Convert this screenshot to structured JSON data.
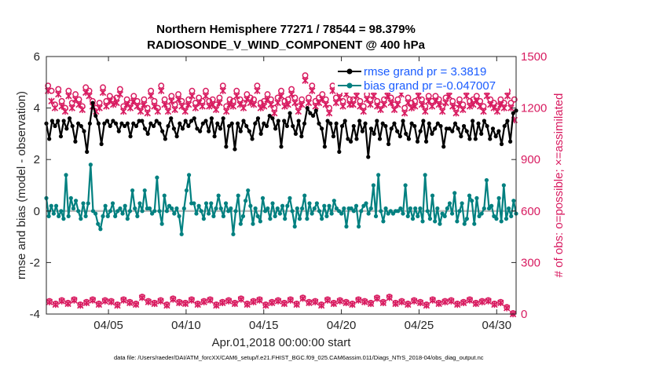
{
  "chart_data": {
    "type": "line",
    "title": "Northern Hemisphere 77271 / 78544 = 98.379%",
    "subtitle": "RADIOSONDE_V_WIND_COMPONENT @ 400 hPa",
    "xlabel": "Apr.01,2018 00:00:00 start",
    "ylabel_left": "rmse and bias (model - observation)",
    "ylabel_right": "# of obs: o=possible; ×=assimilated",
    "ylim_left": [
      -4,
      6
    ],
    "ylim_right": [
      0,
      1500
    ],
    "xlim_days": [
      1,
      31.25
    ],
    "left_ticks": [
      "-4",
      "-2",
      "0",
      "2",
      "4",
      "6"
    ],
    "left_tick_values": [
      -4,
      -2,
      0,
      2,
      4,
      6
    ],
    "right_ticks": [
      "0",
      "300",
      "600",
      "900",
      "1200",
      "1500"
    ],
    "right_tick_values": [
      0,
      300,
      600,
      900,
      1200,
      1500
    ],
    "x_ticks": [
      "04/05",
      "04/10",
      "04/15",
      "04/20",
      "04/25",
      "04/30"
    ],
    "x_tick_days": [
      5,
      10,
      15,
      20,
      25,
      30
    ],
    "footnote": "data file: /Users/raeder/DAI/ATM_forcXX/CAM6_setup/f.e21.FHIST_BGC.f09_025.CAM6assim.011/Diags_NTrS_2018-04/obs_diag_output.nc",
    "series": [
      {
        "name": "rmse grand pr = 3.3819",
        "color": "#000000",
        "values": [
          3.4,
          2.8,
          3.5,
          3.3,
          3.5,
          2.9,
          3.5,
          3.2,
          3.6,
          3.3,
          2.7,
          3.4,
          3.3,
          3.1,
          2.3,
          3.4,
          4.2,
          3.7,
          3.4,
          2.6,
          3.4,
          3.5,
          3.3,
          3.5,
          3.4,
          3.1,
          3.4,
          3.3,
          3.4,
          2.9,
          3.4,
          3.3,
          3.5,
          3.5,
          3.2,
          3.0,
          3.4,
          3.3,
          3.5,
          3.4,
          3.1,
          2.8,
          3.3,
          3.6,
          3.2,
          2.9,
          3.4,
          3.2,
          3.5,
          3.3,
          3.5,
          3.6,
          3.2,
          3.1,
          3.4,
          3.5,
          3.1,
          3.6,
          2.9,
          3.4,
          3.2,
          3.6,
          2.5,
          3.3,
          3.4,
          2.4,
          3.4,
          3.1,
          3.5,
          3.3,
          3.1,
          2.8,
          3.4,
          3.6,
          3.0,
          3.4,
          3.3,
          3.7,
          3.6,
          3.2,
          3.5,
          2.5,
          3.5,
          3.3,
          3.8,
          3.3,
          3.0,
          3.5,
          2.9,
          3.4,
          4.0,
          3.8,
          3.7,
          3.9,
          3.4,
          3.2,
          2.5,
          3.5,
          3.4,
          2.9,
          3.4,
          2.3,
          3.3,
          3.5,
          2.8,
          2.7,
          3.3,
          2.8,
          3.5,
          3.1,
          3.4,
          2.1,
          3.2,
          3.0,
          3.5,
          2.8,
          3.4,
          3.3,
          2.6,
          3.2,
          3.4,
          3.1,
          2.9,
          3.5,
          3.0,
          2.8,
          3.4,
          3.3,
          2.7,
          3.1,
          3.5,
          2.7,
          3.4,
          3.0,
          3.2,
          3.4,
          3.3,
          2.5,
          3.2,
          3.2,
          3.1,
          3.4,
          3.2,
          2.9,
          3.3,
          3.1,
          2.8,
          3.5,
          2.8,
          3.4,
          3.0,
          3.5,
          3.3,
          2.8,
          3.2,
          2.9,
          3.1,
          2.6,
          3.3,
          3.5,
          2.7,
          3.8,
          3.9
        ]
      },
      {
        "name": "bias grand pr =-0.047007",
        "color": "#008080",
        "values": [
          0.5,
          -0.2,
          0.2,
          -0.1,
          0.2,
          -0.2,
          0.0,
          -0.3,
          1.4,
          -0.2,
          0.5,
          0.1,
          0.4,
          0.0,
          -0.3,
          0.3,
          -0.2,
          0.3,
          1.8,
          0.0,
          -0.1,
          -0.5,
          -0.7,
          -0.2,
          0.2,
          -0.2,
          0.0,
          0.3,
          -0.2,
          0.0,
          0.1,
          -0.1,
          0.2,
          -0.3,
          0.0,
          0.8,
          0.1,
          -0.2,
          0.3,
          0.0,
          0.8,
          0.1,
          0.1,
          -0.1,
          0.0,
          1.3,
          0.0,
          -0.5,
          0.6,
          0.0,
          0.2,
          0.1,
          -0.1,
          0.1,
          -0.2,
          -0.9,
          0.1,
          0.8,
          1.4,
          0.3,
          0.3,
          -0.1,
          0.2,
          0.0,
          -0.3,
          0.3,
          -0.1,
          0.3,
          -0.2,
          0.1,
          0.6,
          0.1,
          -0.2,
          0.3,
          0.0,
          0.1,
          -0.9,
          0.0,
          0.6,
          -0.5,
          -0.2,
          0.4,
          0.8,
          0.2,
          -0.5,
          0.1,
          -0.2,
          -0.4,
          0.5,
          0.0,
          0.1,
          -0.3,
          0.3,
          -0.2,
          0.1,
          -0.1,
          0.2,
          -0.3,
          0.2,
          0.5,
          0.0,
          -0.6,
          0.1,
          -0.3,
          0.1,
          0.6,
          -0.3,
          0.3,
          -0.1,
          0.1,
          0.3,
          0.0,
          -0.3,
          0.2,
          -0.2,
          0.2,
          -0.1,
          0.4,
          0.1,
          0.0,
          -0.1,
          0.1,
          -0.6,
          0.1,
          0.1,
          0.0,
          0.2,
          -0.6,
          0.0,
          0.2,
          0.3,
          -0.1,
          0.1,
          1.0,
          -0.2,
          1.4,
          0.0,
          -0.4,
          0.1,
          -0.1,
          0.0,
          -0.1,
          0.0,
          0.0,
          0.1,
          -0.1,
          1.0,
          -0.2,
          0.1,
          -0.3,
          0.1,
          -0.2,
          0.1,
          -0.4,
          1.4,
          0.0,
          -0.3,
          0.6,
          -0.4,
          0.1,
          -0.5,
          -0.1,
          -0.2,
          0.1,
          0.3,
          -0.1,
          0.7,
          -0.4,
          0.0,
          0.3,
          -0.5,
          -0.3,
          0.6,
          0.4,
          -0.5,
          0.5,
          -0.2,
          -0.1,
          0.1,
          1.2,
          0.1,
          0.2,
          -0.2,
          -0.3,
          0.5,
          -0.4,
          1.0,
          -0.3,
          0.1,
          -0.2,
          0.4,
          -0.1
        ]
      }
    ],
    "obs_possible": [
      1330,
      1300,
      1220,
      1310,
      1240,
      1200,
      1300,
      1230,
      1280,
      1250,
      1210,
      1320,
      1300,
      1240,
      1200,
      1230,
      1320,
      1240,
      1270,
      1250,
      1260,
      1310,
      1210,
      1250,
      1230,
      1270,
      1240,
      1210,
      1250,
      1200,
      1300,
      1240,
      1200,
      1330,
      1250,
      1210,
      1270,
      1220,
      1280,
      1240,
      1210,
      1250,
      1300,
      1230,
      1260,
      1240,
      1300,
      1240,
      1250,
      1220,
      1260,
      1330,
      1210,
      1250,
      1240,
      1300,
      1250,
      1230,
      1280,
      1260,
      1250,
      1330,
      1230,
      1240,
      1280,
      1250,
      1200,
      1260,
      1300,
      1240,
      1250,
      1310,
      1260,
      1210,
      1250,
      1390,
      1260,
      1330,
      1240,
      1260,
      1280,
      1250,
      1200,
      1330,
      1260,
      1290,
      1240,
      1310,
      1250,
      1250,
      1300,
      1240,
      1210,
      1280,
      1250,
      1300,
      1240,
      1220,
      1250,
      1300,
      1260,
      1220,
      1250,
      1310,
      1200,
      1260,
      1230,
      1240,
      1300,
      1250,
      1210,
      1270,
      1240,
      1270,
      1250,
      1210,
      1260,
      1300,
      1240,
      1200,
      1250,
      1220,
      1300,
      1240,
      1250,
      1270,
      1240,
      1210,
      1300,
      1250,
      1230,
      1210,
      1250,
      1230,
      1300,
      1230,
      1250
    ],
    "obs_assimilated": [
      1300,
      1240,
      1200,
      1280,
      1210,
      1180,
      1270,
      1200,
      1250,
      1220,
      1190,
      1290,
      1270,
      1210,
      1180,
      1200,
      1290,
      1210,
      1240,
      1220,
      1230,
      1280,
      1180,
      1220,
      1200,
      1240,
      1210,
      1180,
      1220,
      1170,
      1270,
      1210,
      1180,
      1300,
      1220,
      1180,
      1240,
      1190,
      1250,
      1210,
      1180,
      1220,
      1270,
      1200,
      1230,
      1210,
      1270,
      1210,
      1220,
      1190,
      1230,
      1300,
      1180,
      1220,
      1210,
      1270,
      1220,
      1200,
      1250,
      1230,
      1220,
      1300,
      1200,
      1210,
      1250,
      1220,
      1170,
      1230,
      1270,
      1210,
      1220,
      1280,
      1230,
      1180,
      1220,
      1360,
      1230,
      1300,
      1210,
      1230,
      1250,
      1220,
      1170,
      1300,
      1230,
      1260,
      1210,
      1280,
      1220,
      1220,
      1270,
      1210,
      1180,
      1250,
      1220,
      1270,
      1210,
      1190,
      1220,
      1270,
      1230,
      1190,
      1220,
      1280,
      1170,
      1230,
      1200,
      1210,
      1270,
      1220,
      1180,
      1240,
      1210,
      1240,
      1220,
      1180,
      1230,
      1270,
      1210,
      1170,
      1220,
      1190,
      1270,
      1210,
      1220,
      1240,
      1210,
      1180,
      1270,
      1220,
      1200,
      1180,
      1220,
      1200,
      1270,
      1200,
      1130
    ],
    "low_possible": [
      75,
      60,
      80,
      65,
      85,
      55,
      70,
      85,
      60,
      80,
      75,
      55,
      85,
      70,
      60,
      100,
      75,
      65,
      80,
      55,
      90,
      70,
      65,
      85,
      60,
      75,
      85,
      55,
      70,
      80,
      65,
      90,
      60,
      75,
      85,
      55,
      70,
      80,
      65,
      85,
      60,
      95,
      70,
      75,
      55,
      85,
      65,
      80,
      70,
      60,
      85,
      75,
      65,
      95,
      70,
      100,
      65,
      75,
      60,
      80,
      70,
      55,
      85,
      65,
      75,
      80,
      60,
      70,
      85,
      65,
      75,
      80,
      60,
      70,
      40,
      5
    ],
    "low_assimilated": [
      70,
      55,
      75,
      60,
      80,
      50,
      65,
      80,
      55,
      75,
      70,
      50,
      80,
      65,
      55,
      95,
      70,
      60,
      75,
      50,
      85,
      65,
      60,
      80,
      55,
      70,
      80,
      50,
      65,
      75,
      60,
      85,
      55,
      70,
      80,
      50,
      65,
      75,
      60,
      80,
      55,
      90,
      65,
      70,
      50,
      80,
      60,
      75,
      65,
      55,
      80,
      70,
      60,
      90,
      65,
      95,
      60,
      70,
      55,
      75,
      65,
      50,
      80,
      60,
      70,
      75,
      55,
      65,
      80,
      60,
      70,
      75,
      55,
      65,
      35,
      0
    ]
  }
}
